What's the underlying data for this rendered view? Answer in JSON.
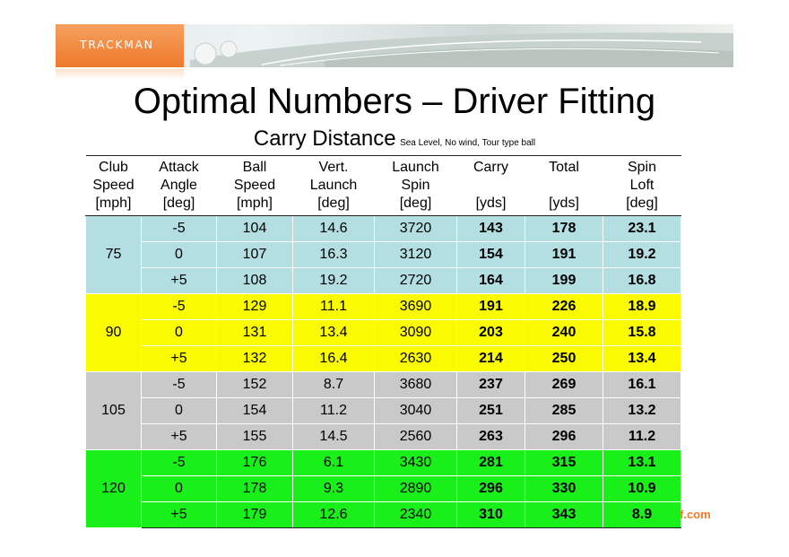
{
  "brand": {
    "logo_text": "TRACKMAN",
    "colors": {
      "orange": "#ee7a2c",
      "blue": "#b4dfe2",
      "yellow": "#fbfb00",
      "gray": "#c9c9c9",
      "green": "#19ef19"
    }
  },
  "title": "Optimal Numbers – Driver Fitting",
  "subtitle": {
    "main": "Carry Distance",
    "note": "Sea Level, No wind, Tour type ball"
  },
  "headers": [
    {
      "line1": "Club",
      "line2": "Speed",
      "line3": "[mph]"
    },
    {
      "line1": "Attack",
      "line2": "Angle",
      "line3": "[deg]"
    },
    {
      "line1": "Ball",
      "line2": "Speed",
      "line3": "[mph]"
    },
    {
      "line1": "Vert.",
      "line2": "Launch",
      "line3": "[deg]"
    },
    {
      "line1": "Launch",
      "line2": "Spin",
      "line3": "[deg]"
    },
    {
      "line1": "Carry",
      "line2": "",
      "line3": "[yds]"
    },
    {
      "line1": "Total",
      "line2": "",
      "line3": "[yds]"
    },
    {
      "line1": "Spin",
      "line2": "Loft",
      "line3": "[deg]"
    }
  ],
  "groups": [
    {
      "club_speed": "75",
      "rows": [
        {
          "attack": "-5",
          "ball_speed": "104",
          "vert_launch": "14.6",
          "spin": "3720",
          "carry": "143",
          "total": "178",
          "spin_loft": "23.1"
        },
        {
          "attack": "0",
          "ball_speed": "107",
          "vert_launch": "16.3",
          "spin": "3120",
          "carry": "154",
          "total": "191",
          "spin_loft": "19.2"
        },
        {
          "attack": "+5",
          "ball_speed": "108",
          "vert_launch": "19.2",
          "spin": "2720",
          "carry": "164",
          "total": "199",
          "spin_loft": "16.8"
        }
      ]
    },
    {
      "club_speed": "90",
      "rows": [
        {
          "attack": "-5",
          "ball_speed": "129",
          "vert_launch": "11.1",
          "spin": "3690",
          "carry": "191",
          "total": "226",
          "spin_loft": "18.9"
        },
        {
          "attack": "0",
          "ball_speed": "131",
          "vert_launch": "13.4",
          "spin": "3090",
          "carry": "203",
          "total": "240",
          "spin_loft": "15.8"
        },
        {
          "attack": "+5",
          "ball_speed": "132",
          "vert_launch": "16.4",
          "spin": "2630",
          "carry": "214",
          "total": "250",
          "spin_loft": "13.4"
        }
      ]
    },
    {
      "club_speed": "105",
      "rows": [
        {
          "attack": "-5",
          "ball_speed": "152",
          "vert_launch": "8.7",
          "spin": "3680",
          "carry": "237",
          "total": "269",
          "spin_loft": "16.1"
        },
        {
          "attack": "0",
          "ball_speed": "154",
          "vert_launch": "11.2",
          "spin": "3040",
          "carry": "251",
          "total": "285",
          "spin_loft": "13.2"
        },
        {
          "attack": "+5",
          "ball_speed": "155",
          "vert_launch": "14.5",
          "spin": "2560",
          "carry": "263",
          "total": "296",
          "spin_loft": "11.2"
        }
      ]
    },
    {
      "club_speed": "120",
      "rows": [
        {
          "attack": "-5",
          "ball_speed": "176",
          "vert_launch": "6.1",
          "spin": "3430",
          "carry": "281",
          "total": "315",
          "spin_loft": "13.1"
        },
        {
          "attack": "0",
          "ball_speed": "178",
          "vert_launch": "9.3",
          "spin": "2890",
          "carry": "296",
          "total": "330",
          "spin_loft": "10.9"
        },
        {
          "attack": "+5",
          "ball_speed": "179",
          "vert_launch": "12.6",
          "spin": "2340",
          "carry": "310",
          "total": "343",
          "spin_loft": "8.9"
        }
      ]
    }
  ],
  "footer_fragment": "f.com"
}
